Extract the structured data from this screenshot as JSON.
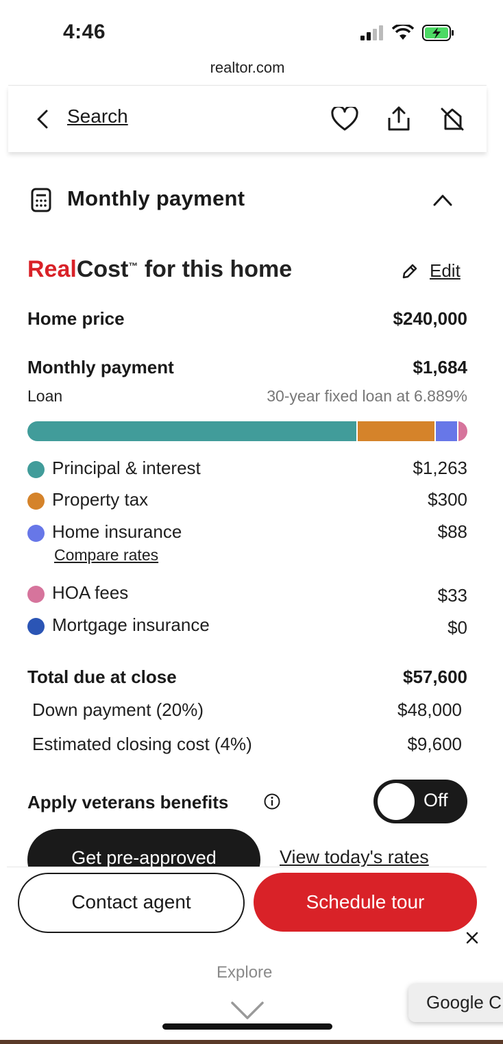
{
  "status_bar": {
    "time": "4:46"
  },
  "browser": {
    "url": "realtor.com"
  },
  "nav": {
    "back_label": "Search"
  },
  "section": {
    "title": "Monthly payment"
  },
  "realcost": {
    "brand_red": "Real",
    "brand_dark": "Cost",
    "trademark": "™",
    "suffix": " for this home",
    "edit_label": "Edit"
  },
  "home_price": {
    "label": "Home price",
    "value": "$240,000"
  },
  "monthly": {
    "label": "Monthly payment",
    "value": "$1,684",
    "loan_label": "Loan",
    "loan_detail": "30-year fixed loan at 6.889%"
  },
  "breakdown": [
    {
      "label": "Principal & interest",
      "value": "$1,263",
      "amount": 1263,
      "color": "#419c9a"
    },
    {
      "label": "Property tax",
      "value": "$300",
      "amount": 300,
      "color": "#d5832a"
    },
    {
      "label": "Home insurance",
      "value": "$88",
      "amount": 88,
      "color": "#6777e8"
    },
    {
      "label": "HOA fees",
      "value": "$33",
      "amount": 33,
      "color": "#d6749c"
    },
    {
      "label": "Mortgage insurance",
      "value": "$0",
      "amount": 0,
      "color": "#2b55b5"
    }
  ],
  "compare_rates": "Compare rates",
  "close": {
    "label": "Total due at close",
    "value": "$57,600",
    "down_label": "Down payment (20%)",
    "down_value": "$48,000",
    "closing_label": "Estimated closing cost (4%)",
    "closing_value": "$9,600"
  },
  "veterans": {
    "label": "Apply veterans benefits",
    "toggle_state": "Off"
  },
  "actions": {
    "preapproved": "Get pre-approved",
    "rates": "View today's rates",
    "contact": "Contact agent",
    "tour": "Schedule tour"
  },
  "footer": {
    "explore": "Explore",
    "google_popup": "Google C"
  },
  "colors": {
    "accent_red": "#d92228",
    "dark": "#1a1a1a"
  }
}
